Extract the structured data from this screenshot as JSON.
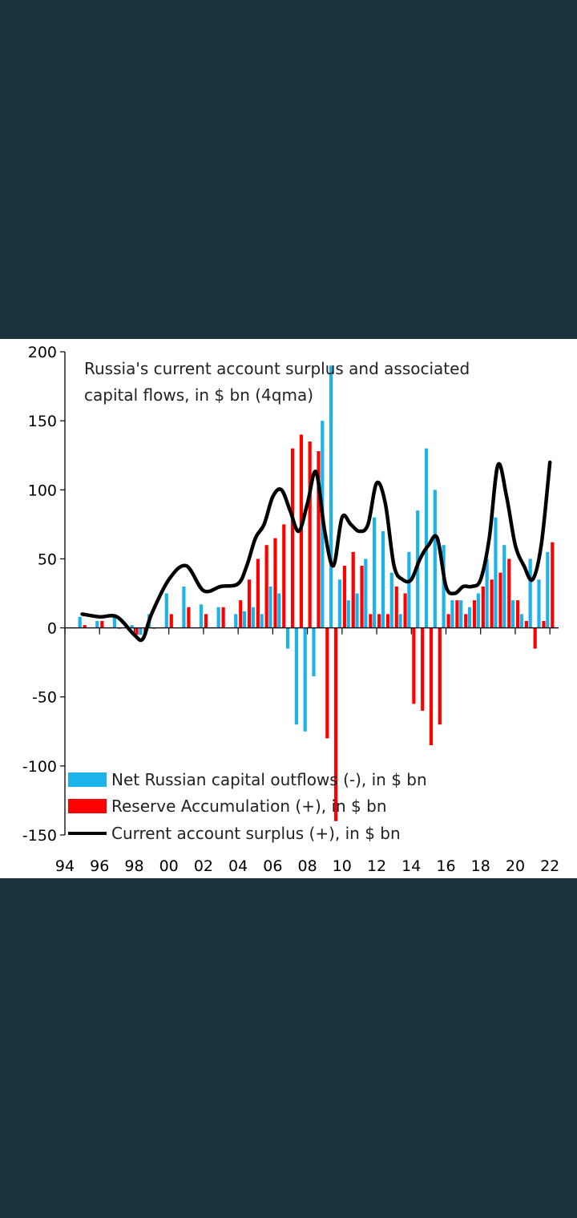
{
  "colors": {
    "background": "#1a3540",
    "outflows": "#1bb3ea",
    "reserves": "#ff0000",
    "current_account": "#000000"
  },
  "chart_data": {
    "type": "bar",
    "title": "Russia's current account surplus and associated capital flows, in $ bn (4qma)",
    "title_lines": [
      "Russia's current account surplus and associated",
      "capital flows, in $ bn (4qma)"
    ],
    "ylim": [
      -150,
      200
    ],
    "yticks": [
      200,
      150,
      100,
      50,
      0,
      -50,
      -100,
      -150
    ],
    "xlim": [
      1994,
      2022.5
    ],
    "xticks": [
      "94",
      "96",
      "98",
      "00",
      "02",
      "04",
      "06",
      "08",
      "10",
      "12",
      "14",
      "16",
      "18",
      "20",
      "22"
    ],
    "grid": false,
    "legend_position": "bottom-left",
    "legend": [
      "Net Russian capital outflows (-), in $ bn",
      "Reserve Accumulation (+), in $ bn",
      "Current account surplus (+), in $ bn"
    ],
    "x": [
      1995.0,
      1996.0,
      1997.0,
      1998.0,
      1998.5,
      1999.0,
      2000.0,
      2001.0,
      2002.0,
      2003.0,
      2004.0,
      2004.5,
      2005.0,
      2005.5,
      2006.0,
      2006.5,
      2007.0,
      2007.5,
      2008.0,
      2008.5,
      2009.0,
      2009.5,
      2010.0,
      2010.5,
      2011.0,
      2011.5,
      2012.0,
      2012.5,
      2013.0,
      2013.5,
      2014.0,
      2014.5,
      2015.0,
      2015.5,
      2016.0,
      2016.5,
      2017.0,
      2017.5,
      2018.0,
      2018.5,
      2019.0,
      2019.5,
      2020.0,
      2020.5,
      2021.0,
      2021.5,
      2022.0
    ],
    "series": [
      {
        "name": "Net Russian capital outflows (-), in $ bn",
        "values": [
          8,
          5,
          10,
          2,
          -5,
          10,
          25,
          30,
          17,
          15,
          10,
          12,
          15,
          10,
          30,
          25,
          -15,
          -70,
          -75,
          -35,
          150,
          190,
          35,
          20,
          25,
          50,
          80,
          70,
          40,
          10,
          55,
          85,
          130,
          100,
          60,
          20,
          20,
          15,
          25,
          50,
          80,
          60,
          20,
          10,
          50,
          35,
          55
        ]
      },
      {
        "name": "Reserve Accumulation (+), in $ bn",
        "values": [
          2,
          5,
          0,
          -5,
          -5,
          0,
          10,
          15,
          10,
          15,
          20,
          35,
          50,
          60,
          65,
          75,
          130,
          140,
          135,
          128,
          -80,
          -140,
          45,
          55,
          45,
          10,
          10,
          10,
          30,
          25,
          -55,
          -60,
          -85,
          -70,
          10,
          20,
          10,
          20,
          30,
          35,
          40,
          50,
          20,
          5,
          -15,
          5,
          62
        ]
      },
      {
        "name": "Current account surplus (+), in $ bn",
        "values": [
          10,
          8,
          8,
          -5,
          -8,
          10,
          35,
          45,
          27,
          30,
          32,
          45,
          65,
          75,
          95,
          100,
          85,
          70,
          90,
          113,
          70,
          45,
          80,
          75,
          70,
          75,
          105,
          90,
          45,
          35,
          35,
          50,
          60,
          65,
          30,
          25,
          30,
          30,
          35,
          65,
          118,
          95,
          60,
          45,
          35,
          60,
          120
        ]
      }
    ]
  }
}
